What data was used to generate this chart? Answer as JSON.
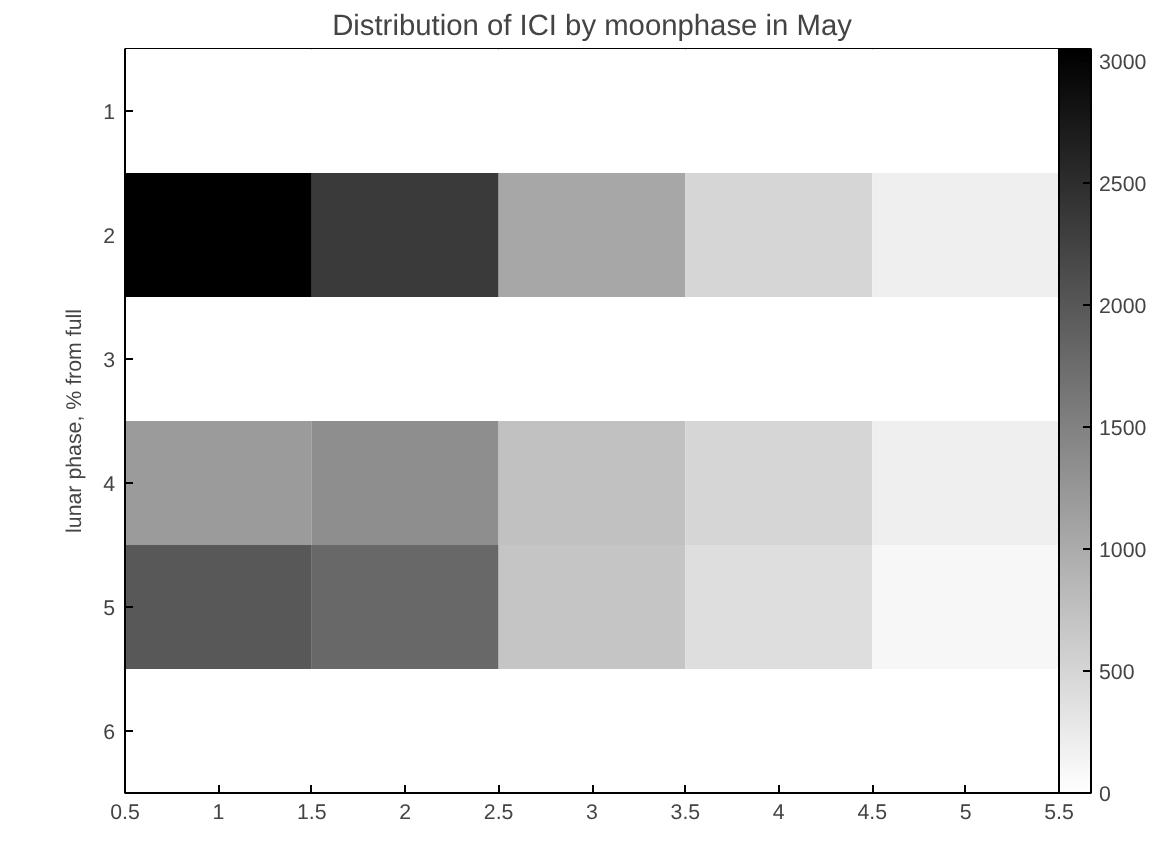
{
  "chart_data": {
    "type": "heatmap",
    "title": "Distribution of ICI by moonphase in May",
    "ylabel": "lunar phase, % from full",
    "x": [
      1,
      2,
      3,
      4,
      5
    ],
    "xlim": [
      0.5,
      5.5
    ],
    "xticks": [
      0.5,
      1,
      1.5,
      2,
      2.5,
      3,
      3.5,
      4,
      4.5,
      5,
      5.5
    ],
    "y_categories": [
      "1",
      "2",
      "3",
      "4",
      "5",
      "6"
    ],
    "cells": [
      [
        0,
        0,
        0,
        0,
        0
      ],
      [
        3050,
        2350,
        1050,
        500,
        200
      ],
      [
        0,
        0,
        0,
        0,
        0
      ],
      [
        1200,
        1350,
        750,
        500,
        200
      ],
      [
        2000,
        1800,
        700,
        400,
        100
      ],
      [
        0,
        0,
        0,
        0,
        0
      ]
    ],
    "clim": [
      0,
      3050
    ],
    "cticks": [
      0,
      500,
      1000,
      1500,
      2000,
      2500,
      3000
    ]
  }
}
